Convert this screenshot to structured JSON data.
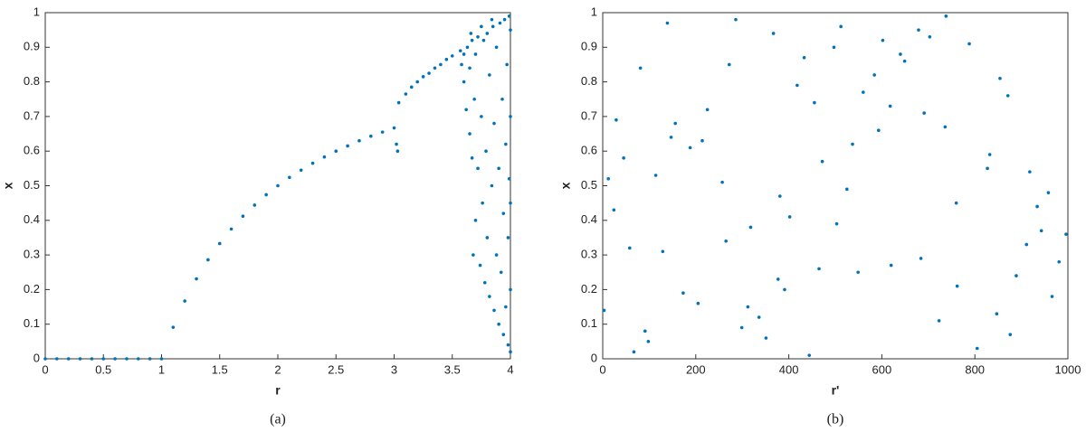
{
  "chart_data": [
    {
      "type": "scatter",
      "caption": "(a)",
      "xlabel": "r",
      "ylabel": "x",
      "color": "#0072BD",
      "xlim": [
        0,
        4
      ],
      "xticks": [
        0,
        0.5,
        1,
        1.5,
        2,
        2.5,
        3,
        3.5,
        4
      ],
      "ylim": [
        0,
        1
      ],
      "yticks": [
        0,
        0.1,
        0.2,
        0.3,
        0.4,
        0.5,
        0.6,
        0.7,
        0.8,
        0.9,
        1
      ],
      "x": [
        0,
        0.1,
        0.2,
        0.3,
        0.4,
        0.5,
        0.6,
        0.7,
        0.8,
        0.9,
        1.0,
        1.1,
        1.2,
        1.3,
        1.4,
        1.5,
        1.6,
        1.7,
        1.8,
        1.9,
        2.0,
        2.1,
        2.2,
        2.3,
        2.4,
        2.5,
        2.6,
        2.7,
        2.8,
        2.9,
        3.0,
        3.02,
        3.03,
        3.04,
        3.1,
        3.15,
        3.2,
        3.25,
        3.3,
        3.35,
        3.4,
        3.45,
        3.5,
        3.57,
        3.58,
        3.6,
        3.6,
        3.62,
        3.63,
        3.65,
        3.65,
        3.67,
        3.67,
        3.68,
        3.69,
        3.7,
        3.7,
        3.72,
        3.72,
        3.74,
        3.75,
        3.76,
        3.77,
        3.78,
        3.79,
        3.8,
        3.8,
        3.82,
        3.82,
        3.84,
        3.85,
        3.86,
        3.86,
        3.88,
        3.88,
        3.9,
        3.9,
        3.91,
        3.92,
        3.93,
        3.94,
        3.94,
        3.95,
        3.96,
        3.96,
        3.97,
        3.98,
        3.98,
        3.99,
        3.99,
        4.0,
        4.0,
        4.0,
        4.0,
        4.0,
        3.84,
        3.75,
        3.66
      ],
      "values": [
        0,
        0,
        0,
        0,
        0,
        0,
        0,
        0,
        0,
        0,
        0,
        0.091,
        0.167,
        0.231,
        0.286,
        0.333,
        0.375,
        0.412,
        0.444,
        0.474,
        0.5,
        0.524,
        0.545,
        0.565,
        0.583,
        0.6,
        0.615,
        0.63,
        0.643,
        0.655,
        0.667,
        0.62,
        0.6,
        0.74,
        0.765,
        0.785,
        0.8,
        0.815,
        0.825,
        0.84,
        0.85,
        0.865,
        0.875,
        0.89,
        0.85,
        0.8,
        0.88,
        0.72,
        0.9,
        0.65,
        0.84,
        0.58,
        0.92,
        0.3,
        0.75,
        0.4,
        0.88,
        0.55,
        0.93,
        0.27,
        0.7,
        0.45,
        0.92,
        0.22,
        0.6,
        0.35,
        0.94,
        0.18,
        0.82,
        0.5,
        0.96,
        0.14,
        0.68,
        0.3,
        0.9,
        0.1,
        0.55,
        0.97,
        0.25,
        0.75,
        0.07,
        0.42,
        0.98,
        0.15,
        0.62,
        0.85,
        0.04,
        0.35,
        0.99,
        0.52,
        0.02,
        0.2,
        0.45,
        0.7,
        0.95,
        0.98,
        0.96,
        0.94
      ]
    },
    {
      "type": "scatter",
      "caption": "(b)",
      "xlabel": "r'",
      "ylabel": "x",
      "color": "#0072BD",
      "xlim": [
        0,
        1000
      ],
      "xticks": [
        0,
        200,
        400,
        600,
        800,
        1000
      ],
      "ylim": [
        0,
        1
      ],
      "yticks": [
        0,
        0.1,
        0.2,
        0.3,
        0.4,
        0.5,
        0.6,
        0.7,
        0.8,
        0.9,
        1
      ],
      "x": [
        12,
        847,
        433,
        265,
        691,
        98,
        512,
        934,
        377,
        156,
        788,
        620,
        45,
        299,
        871,
        503,
        214,
        966,
        738,
        381,
        129,
        584,
        827,
        67,
        455,
        312,
        703,
        996,
        188,
        549,
        640,
        24,
        876,
        418,
        257,
        762,
        139,
        593,
        911,
        336,
        472,
        81,
        684,
        225,
        958,
        367,
        805,
        537,
        173,
        649,
        402,
        29,
        889,
        286,
        723,
        114,
        560,
        943,
        351,
        497,
        760,
        205,
        618,
        58,
        832,
        444,
        272,
        981,
        147,
        679,
        391,
        525,
        854,
        3,
        736,
        318,
        602,
        91,
        918,
        465
      ],
      "values": [
        0.52,
        0.13,
        0.87,
        0.34,
        0.71,
        0.05,
        0.96,
        0.44,
        0.23,
        0.68,
        0.91,
        0.27,
        0.58,
        0.09,
        0.76,
        0.39,
        0.63,
        0.18,
        0.99,
        0.47,
        0.31,
        0.82,
        0.55,
        0.02,
        0.74,
        0.15,
        0.93,
        0.36,
        0.61,
        0.25,
        0.88,
        0.43,
        0.07,
        0.79,
        0.51,
        0.21,
        0.97,
        0.66,
        0.33,
        0.12,
        0.57,
        0.84,
        0.29,
        0.72,
        0.48,
        0.94,
        0.03,
        0.62,
        0.19,
        0.86,
        0.41,
        0.69,
        0.24,
        0.98,
        0.11,
        0.53,
        0.77,
        0.37,
        0.06,
        0.9,
        0.45,
        0.16,
        0.73,
        0.32,
        0.59,
        0.01,
        0.85,
        0.28,
        0.64,
        0.95,
        0.2,
        0.49,
        0.81,
        0.14,
        0.67,
        0.38,
        0.92,
        0.08,
        0.54,
        0.26
      ]
    }
  ]
}
